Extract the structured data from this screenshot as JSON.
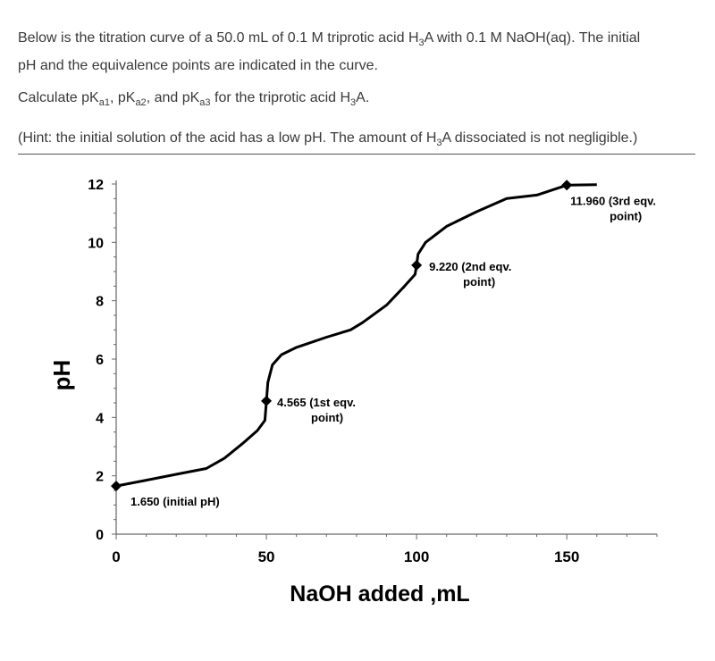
{
  "question": {
    "line1a": "Below is the titration curve of a 50.0 mL of 0.1 M triprotic acid H",
    "line1b": "3",
    "line1c": "A with 0.1 M NaOH(aq). The initial",
    "line2": "pH and the equivalence points are indicated in the curve.",
    "calc_a": "Calculate pK",
    "calc_sub1": "a1",
    "calc_b": ", pK",
    "calc_sub2": "a2",
    "calc_c": ", and pK",
    "calc_sub3": "a3",
    "calc_d": " for the triprotic acid H",
    "calc_sub4": "3",
    "calc_e": "A.",
    "hint_a": "(Hint: the initial solution of the acid has a low pH. The amount of H",
    "hint_sub": "3",
    "hint_b": "A dissociated is not negligible.)"
  },
  "chart_data": {
    "type": "line",
    "title": "",
    "xlabel": "NaOH added ,mL",
    "ylabel": "pH",
    "xlim": [
      0,
      180
    ],
    "ylim": [
      0,
      12
    ],
    "xticks": [
      0,
      50,
      100,
      150
    ],
    "yticks": [
      0,
      2,
      4,
      6,
      8,
      10,
      12
    ],
    "grid": false,
    "series": [
      {
        "x": [
          0,
          10,
          20,
          30,
          36,
          42,
          47,
          49.5,
          50,
          50.5,
          52,
          55,
          60,
          70,
          78,
          82,
          90,
          96,
          99.5,
          100,
          100.5,
          103,
          110,
          120,
          130,
          140,
          150,
          160
        ],
        "y": [
          1.65,
          1.85,
          2.05,
          2.25,
          2.6,
          3.1,
          3.55,
          3.9,
          4.565,
          5.2,
          5.8,
          6.15,
          6.4,
          6.75,
          7.0,
          7.25,
          7.85,
          8.5,
          8.9,
          9.22,
          9.6,
          10.0,
          10.55,
          11.05,
          11.5,
          11.62,
          11.96,
          11.98
        ]
      }
    ],
    "points": [
      {
        "x": 0,
        "y": 1.65,
        "label": "1.650 (initial pH)"
      },
      {
        "x": 50,
        "y": 4.565,
        "label": "4.565 (1st  eqv.",
        "label2": "point)"
      },
      {
        "x": 100,
        "y": 9.22,
        "label": "9.220 (2nd  eqv.",
        "label2": "point)"
      },
      {
        "x": 150,
        "y": 11.96,
        "label": "11.960 (3rd  eqv.",
        "label2": "point)"
      }
    ]
  }
}
